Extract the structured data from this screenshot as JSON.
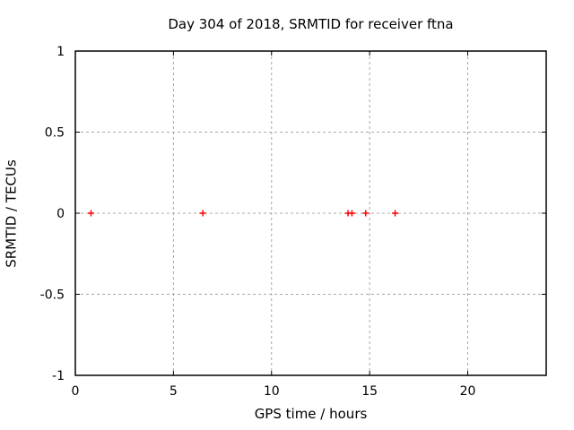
{
  "window": {
    "background": "#ffffff"
  },
  "chart_data": {
    "type": "scatter",
    "title": "Day 304 of 2018, SRMTID for receiver ftna",
    "xlabel": "GPS time / hours",
    "ylabel": "SRMTID / TECUs",
    "xlim": [
      0,
      24
    ],
    "ylim": [
      -1,
      1
    ],
    "xticks": [
      0,
      5,
      10,
      15,
      20
    ],
    "xtick_labels": [
      "0",
      "5",
      "10",
      "15",
      "20"
    ],
    "yticks": [
      -1,
      -0.5,
      0,
      0.5,
      1
    ],
    "ytick_labels": [
      "-1",
      "-0.5",
      "0",
      "0.5",
      "1"
    ],
    "grid": true,
    "grid_xticks": [
      5,
      10,
      15,
      20
    ],
    "grid_yticks": [
      -0.5,
      0,
      0.5
    ],
    "legend": "none",
    "series": [
      {
        "name": "SRMTID",
        "marker": "plus",
        "color": "#ff0000",
        "points": [
          {
            "x": 0.8,
            "y": 0
          },
          {
            "x": 6.5,
            "y": 0
          },
          {
            "x": 13.9,
            "y": 0
          },
          {
            "x": 14.1,
            "y": 0
          },
          {
            "x": 14.8,
            "y": 0
          },
          {
            "x": 16.3,
            "y": 0
          }
        ]
      }
    ],
    "colors": {
      "axis": "#000000",
      "grid": "#a8a8a8",
      "text": "#000000",
      "marker": "#ff0000"
    }
  }
}
